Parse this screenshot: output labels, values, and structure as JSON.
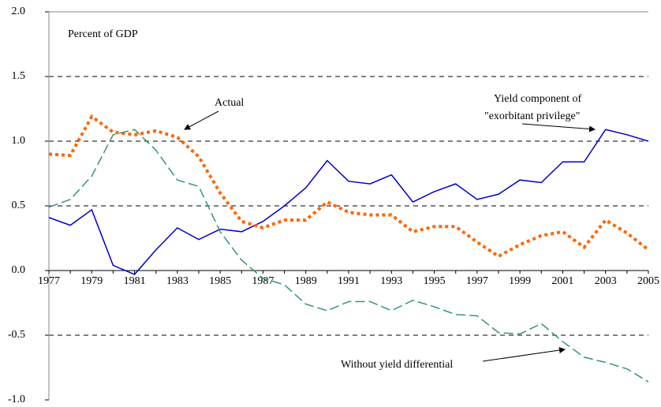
{
  "chart_data": {
    "type": "line",
    "annotations": [
      "Percent of GDP",
      "Actual",
      "Yield component of",
      "\"exorbitant privilege\"",
      "Without yield differential"
    ],
    "categories": [
      "1977",
      null,
      "1979",
      null,
      "1981",
      null,
      "1983",
      null,
      "1985",
      null,
      "1987",
      null,
      "1989",
      null,
      "1991",
      null,
      "1993",
      null,
      "1995",
      null,
      "1997",
      null,
      "1999",
      null,
      "2001",
      null,
      "2003",
      null,
      "2005"
    ],
    "series": [
      {
        "color": "#0000cc",
        "style": "solid",
        "values": [
          0.41,
          0.35,
          0.47,
          0.04,
          -0.03,
          0.16,
          0.33,
          0.24,
          0.32,
          0.3,
          0.38,
          0.5,
          0.64,
          0.85,
          0.69,
          0.67,
          0.74,
          0.53,
          0.61,
          0.67,
          0.55,
          0.59,
          0.7,
          0.68,
          0.84,
          0.84,
          1.09,
          1.05,
          1.0
        ]
      },
      {
        "color": "#ff6600",
        "style": "dotted",
        "values": [
          0.9,
          0.89,
          1.19,
          1.07,
          1.05,
          1.08,
          1.03,
          0.88,
          0.6,
          0.38,
          0.33,
          0.39,
          0.39,
          0.53,
          0.45,
          0.43,
          0.43,
          0.3,
          0.34,
          0.34,
          0.22,
          0.11,
          0.2,
          0.27,
          0.3,
          0.18,
          0.39,
          0.29,
          0.16
        ]
      },
      {
        "color": "#339966",
        "style": "dashed",
        "values": [
          0.49,
          0.55,
          0.73,
          1.05,
          1.09,
          0.93,
          0.7,
          0.65,
          0.3,
          0.08,
          -0.06,
          -0.11,
          -0.26,
          -0.31,
          -0.24,
          -0.24,
          -0.31,
          -0.23,
          -0.28,
          -0.34,
          -0.35,
          -0.48,
          -0.49,
          -0.41,
          -0.55,
          -0.67,
          -0.71,
          -0.76,
          -0.86
        ]
      }
    ],
    "ylim": [
      -1,
      2
    ],
    "yticks": [
      {
        "value": -1,
        "label": "-1.0"
      },
      {
        "value": -0.5,
        "label": "-0.5"
      },
      {
        "value": 0,
        "label": "0.0"
      },
      {
        "value": 0.5,
        "label": "0.5"
      },
      {
        "value": 1,
        "label": "1.0"
      },
      {
        "value": 1.5,
        "label": "1.5"
      },
      {
        "value": 2,
        "label": "2.0"
      }
    ],
    "grid": true
  }
}
